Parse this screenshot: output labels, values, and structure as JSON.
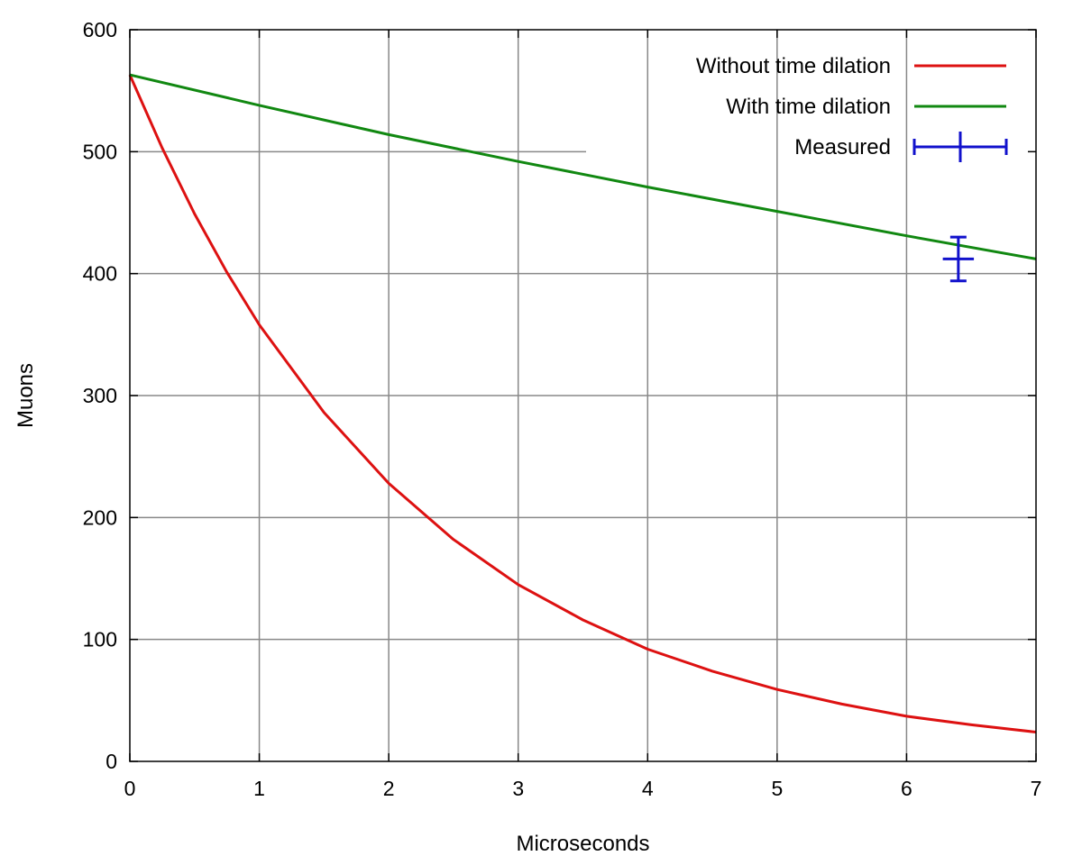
{
  "chart_data": {
    "type": "line",
    "title": "",
    "xlabel": "Microseconds",
    "ylabel": "Muons",
    "xlim": [
      0,
      7
    ],
    "ylim": [
      0,
      600
    ],
    "x_ticks": [
      0,
      1,
      2,
      3,
      4,
      5,
      6,
      7
    ],
    "y_ticks": [
      0,
      100,
      200,
      300,
      400,
      500,
      600
    ],
    "grid": true,
    "legend_position": "top-right",
    "series": [
      {
        "name": "Without time dilation",
        "kind": "curve",
        "color": "#dd1111",
        "x": [
          0,
          0.25,
          0.5,
          0.75,
          1,
          1.5,
          2,
          2.5,
          3,
          3.5,
          4,
          4.5,
          5,
          5.5,
          6,
          6.5,
          7
        ],
        "y": [
          563,
          503,
          449,
          401,
          358,
          286,
          228,
          182,
          145,
          116,
          92,
          74,
          59,
          47,
          37,
          30,
          24
        ]
      },
      {
        "name": "With time dilation",
        "kind": "curve",
        "color": "#118811",
        "x": [
          0,
          1,
          2,
          3,
          4,
          5,
          6,
          7
        ],
        "y": [
          563,
          538,
          514,
          492,
          471,
          451,
          431,
          412
        ]
      },
      {
        "name": "Measured",
        "kind": "errorbar",
        "color": "#1111cc",
        "x": [
          6.4
        ],
        "y": [
          412
        ],
        "xerr": [
          0.12
        ],
        "yerr": [
          18
        ]
      }
    ]
  }
}
